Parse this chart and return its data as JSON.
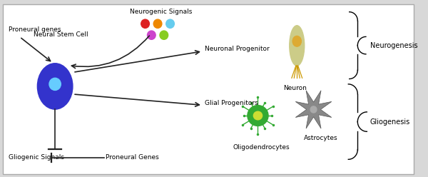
{
  "bg_color": "#d8d8d8",
  "panel_color": "#ffffff",
  "labels": {
    "proneural_genes": "Proneural genes",
    "neural_stem_cell": "Neural Stem Cell",
    "gliogenic_signals": "Gliogenic Signals",
    "neurogenic_signals": "Neurogenic Signals",
    "neuronal_progenitor": "Neuronal Progenitor",
    "glial_progenitors": "Glial Progenitors",
    "neuron": "Neuron",
    "astrocytes": "Astrocytes",
    "oligodendrocytes": "Oligodendrocytes",
    "proneural_genes2": "Proneural Genes",
    "neurogenesis": "Neurogenesis",
    "gliogenesis": "Gliogenesis"
  },
  "colors": {
    "neural_stem_cell_body": "#3333cc",
    "neural_stem_cell_nucleus": "#66ccff",
    "neuron_body": "#cccc88",
    "neuron_nucleus": "#ddaa33",
    "astrocyte_body": "#888888",
    "astrocyte_nucleus": "#aaaaaa",
    "oligodendrocyte_body": "#33aa33",
    "oligodendrocyte_nucleus": "#ccdd33",
    "signal_red": "#dd2222",
    "signal_orange": "#ee8800",
    "signal_cyan": "#66ccee",
    "signal_magenta": "#cc44cc",
    "signal_green": "#88cc22",
    "arrow_color": "#222222",
    "dendrite_color": "#cc9900"
  }
}
